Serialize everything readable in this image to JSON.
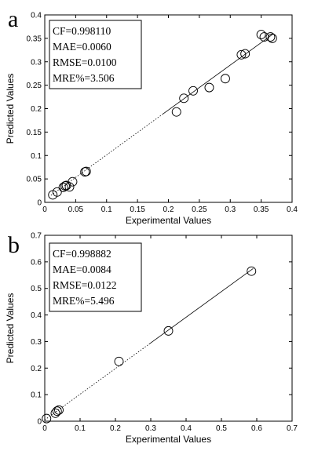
{
  "chart_data": [
    {
      "panel_label": "a",
      "type": "scatter",
      "xlabel": "Experimental Values",
      "ylabel": "Predicted Values",
      "xlim": [
        0,
        0.4
      ],
      "ylim": [
        0,
        0.4
      ],
      "xticks": [
        "0",
        "0.05",
        "0.1",
        "0.15",
        "0.2",
        "0.25",
        "0.3",
        "0.35",
        "0.4"
      ],
      "yticks": [
        "0",
        "0.05",
        "0.1",
        "0.15",
        "0.2",
        "0.25",
        "0.3",
        "0.35",
        "0.4"
      ],
      "stats": [
        "CF=0.998110",
        "MAE=0.0060",
        "RMSE=0.0100",
        "MRE%=3.506"
      ],
      "fit_line": {
        "x": [
          0.01,
          0.37
        ],
        "y": [
          0.015,
          0.36
        ]
      },
      "x": [
        0.013,
        0.02,
        0.03,
        0.033,
        0.035,
        0.04,
        0.045,
        0.065,
        0.067,
        0.213,
        0.225,
        0.24,
        0.266,
        0.292,
        0.318,
        0.324,
        0.35,
        0.355,
        0.365,
        0.368
      ],
      "y": [
        0.016,
        0.022,
        0.032,
        0.035,
        0.036,
        0.033,
        0.044,
        0.065,
        0.066,
        0.193,
        0.222,
        0.238,
        0.245,
        0.264,
        0.315,
        0.317,
        0.358,
        0.353,
        0.353,
        0.35
      ]
    },
    {
      "panel_label": "b",
      "type": "scatter",
      "xlabel": "Experimental Values",
      "ylabel": "Predicted Values",
      "xlim": [
        0,
        0.7
      ],
      "ylim": [
        0,
        0.7
      ],
      "xticks": [
        "0",
        "0.1",
        "0.2",
        "0.3",
        "0.4",
        "0.5",
        "0.6",
        "0.7"
      ],
      "yticks": [
        "0",
        "0.1",
        "0.2",
        "0.3",
        "0.4",
        "0.5",
        "0.6",
        "0.7"
      ],
      "stats": [
        "CF=0.998882",
        "MAE=0.0084",
        "RMSE=0.0122",
        "MRE%=5.496"
      ],
      "fit_line": {
        "x": [
          0.0,
          0.59
        ],
        "y": [
          0.005,
          0.575
        ]
      },
      "x": [
        0.005,
        0.03,
        0.035,
        0.04,
        0.21,
        0.35,
        0.585
      ],
      "y": [
        0.01,
        0.03,
        0.038,
        0.042,
        0.225,
        0.34,
        0.565
      ]
    }
  ]
}
